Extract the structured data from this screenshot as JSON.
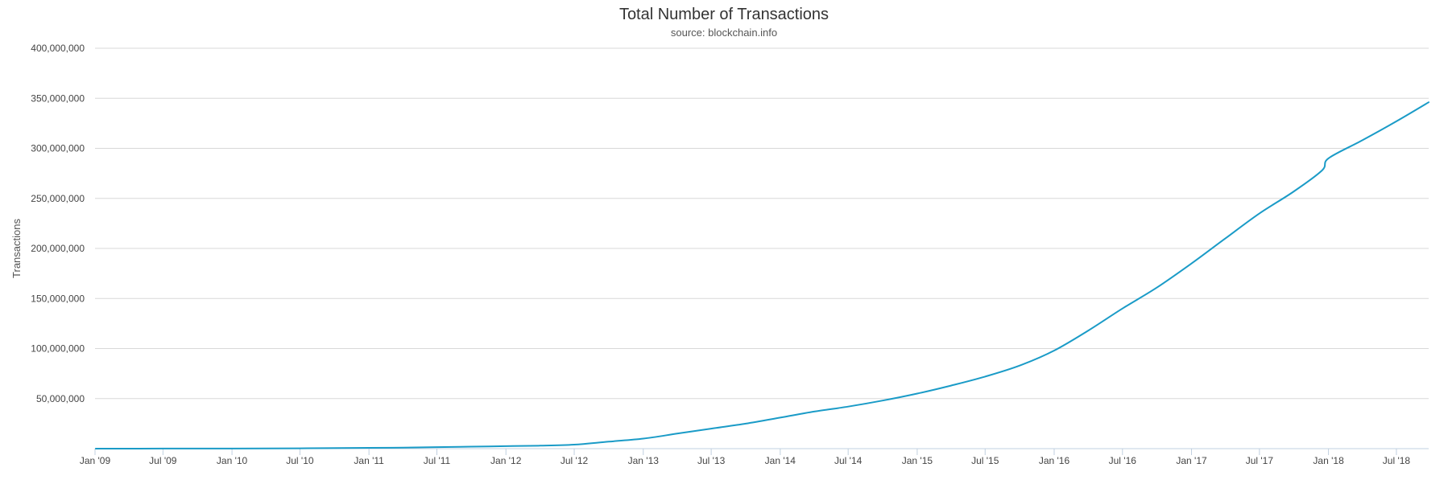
{
  "chart_data": {
    "type": "line",
    "title": "Total Number of Transactions",
    "subtitle": "source: blockchain.info",
    "xlabel": "",
    "ylabel": "Transactions",
    "ylim": [
      0,
      400000000
    ],
    "y_ticks": [
      0,
      50000000,
      100000000,
      150000000,
      200000000,
      250000000,
      300000000,
      350000000,
      400000000
    ],
    "y_tick_labels": [
      "",
      "50,000,000",
      "100,000,000",
      "150,000,000",
      "200,000,000",
      "250,000,000",
      "300,000,000",
      "350,000,000",
      "400,000,000"
    ],
    "xlim": [
      "2009-01-01",
      "2018-09-25"
    ],
    "x_ticks": [
      "2009-01-01",
      "2009-07-01",
      "2010-01-01",
      "2010-07-01",
      "2011-01-01",
      "2011-07-01",
      "2012-01-01",
      "2012-07-01",
      "2013-01-01",
      "2013-07-01",
      "2014-01-01",
      "2014-07-01",
      "2015-01-01",
      "2015-07-01",
      "2016-01-01",
      "2016-07-01",
      "2017-01-01",
      "2017-07-01",
      "2018-01-01",
      "2018-07-01"
    ],
    "x_tick_labels": [
      "Jan '09",
      "Jul '09",
      "Jan '10",
      "Jul '10",
      "Jan '11",
      "Jul '11",
      "Jan '12",
      "Jul '12",
      "Jan '13",
      "Jul '13",
      "Jan '14",
      "Jul '14",
      "Jan '15",
      "Jul '15",
      "Jan '16",
      "Jul '16",
      "Jan '17",
      "Jul '17",
      "Jan '18",
      "Jul '18"
    ],
    "grid": true,
    "legend": "none",
    "colors": {
      "line": "#1a9bc7",
      "grid": "#d8d8d8",
      "axis": "#c0d0e0"
    },
    "series": [
      {
        "x": [
          "2009-01-03",
          "2009-07-01",
          "2010-01-01",
          "2010-07-01",
          "2011-01-01",
          "2011-04-01",
          "2011-07-01",
          "2011-10-01",
          "2012-01-01",
          "2012-04-01",
          "2012-07-01",
          "2012-10-01",
          "2013-01-01",
          "2013-04-01",
          "2013-07-01",
          "2013-10-01",
          "2014-01-01",
          "2014-04-01",
          "2014-07-01",
          "2014-10-01",
          "2015-01-01",
          "2015-04-01",
          "2015-07-01",
          "2015-10-01",
          "2016-01-01",
          "2016-04-01",
          "2016-07-01",
          "2016-10-01",
          "2017-01-01",
          "2017-04-01",
          "2017-07-01",
          "2017-10-01",
          "2017-12-15",
          "2018-01-01",
          "2018-04-01",
          "2018-07-01",
          "2018-09-25"
        ],
        "values": [
          0,
          50000,
          100000,
          300000,
          800000,
          1000000,
          1500000,
          2000000,
          2500000,
          3000000,
          4000000,
          7000000,
          10000000,
          15000000,
          20000000,
          25000000,
          31000000,
          37000000,
          42000000,
          48000000,
          55000000,
          63000000,
          72000000,
          83000000,
          98000000,
          118000000,
          140000000,
          161000000,
          185000000,
          210000000,
          235000000,
          257000000,
          278000000,
          290000000,
          308000000,
          327000000,
          346000000
        ]
      }
    ]
  }
}
